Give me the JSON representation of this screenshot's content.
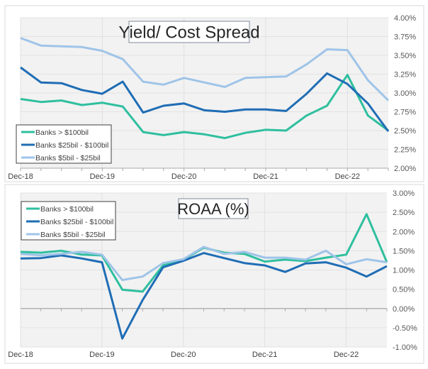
{
  "chart_data": [
    {
      "type": "line",
      "title": "Yield/ Cost Spread",
      "x": [
        "Dec-18",
        "Mar-19",
        "Jun-19",
        "Sep-19",
        "Dec-19",
        "Mar-20",
        "Jun-20",
        "Sep-20",
        "Dec-20",
        "Mar-21",
        "Jun-21",
        "Sep-21",
        "Dec-21",
        "Mar-22",
        "Jun-22",
        "Sep-22",
        "Dec-22",
        "Mar-23",
        "Jun-23"
      ],
      "xtick_labels": [
        "Dec-18",
        "Dec-19",
        "Dec-20",
        "Dec-21",
        "Dec-22"
      ],
      "ylim": [
        2.0,
        4.0
      ],
      "yticks": [
        2.0,
        2.25,
        2.5,
        2.75,
        3.0,
        3.25,
        3.5,
        3.75,
        4.0
      ],
      "ytick_labels": [
        "2.00%",
        "2.25%",
        "2.50%",
        "2.75%",
        "3.00%",
        "3.25%",
        "3.50%",
        "3.75%",
        "4.00%"
      ],
      "legend": "bottom-left",
      "grid": true,
      "series": [
        {
          "name": "Banks > $100bil",
          "color": "#2fbf9f",
          "values": [
            2.92,
            2.88,
            2.9,
            2.84,
            2.87,
            2.82,
            2.48,
            2.44,
            2.48,
            2.45,
            2.4,
            2.47,
            2.51,
            2.5,
            2.7,
            2.83,
            3.24,
            2.7,
            2.5
          ]
        },
        {
          "name": "Banks $25bil - $100bil",
          "color": "#1f6db5",
          "values": [
            3.34,
            3.14,
            3.13,
            3.04,
            2.99,
            3.15,
            2.74,
            2.83,
            2.86,
            2.77,
            2.75,
            2.78,
            2.78,
            2.76,
            2.99,
            3.26,
            3.12,
            2.86,
            2.49
          ]
        },
        {
          "name": "Banks $5bil - $25bil",
          "color": "#9fc4e8",
          "values": [
            3.73,
            3.63,
            3.62,
            3.61,
            3.56,
            3.45,
            3.15,
            3.11,
            3.2,
            3.14,
            3.08,
            3.2,
            3.21,
            3.22,
            3.38,
            3.58,
            3.57,
            3.17,
            2.9
          ]
        }
      ]
    },
    {
      "type": "line",
      "title": "ROAA (%)",
      "x": [
        "Dec-18",
        "Mar-19",
        "Jun-19",
        "Sep-19",
        "Dec-19",
        "Mar-20",
        "Jun-20",
        "Sep-20",
        "Dec-20",
        "Mar-21",
        "Jun-21",
        "Sep-21",
        "Dec-21",
        "Mar-22",
        "Jun-22",
        "Sep-22",
        "Dec-22",
        "Mar-23",
        "Jun-23"
      ],
      "xtick_labels": [
        "Dec-18",
        "Dec-19",
        "Dec-20",
        "Dec-21",
        "Dec-22"
      ],
      "ylim": [
        -1.0,
        3.0
      ],
      "yticks": [
        -1.0,
        -0.5,
        0,
        0.5,
        1.0,
        1.5,
        2.0,
        2.5,
        3.0
      ],
      "ytick_labels": [
        "-1.00%",
        "-0.50%",
        "0.00%",
        "0.50%",
        "1.00%",
        "1.50%",
        "2.00%",
        "2.50%",
        "3.00%"
      ],
      "legend": "top-left",
      "grid": true,
      "series": [
        {
          "name": "Banks > $100bil",
          "color": "#2fbf9f",
          "values": [
            1.47,
            1.45,
            1.5,
            1.4,
            1.38,
            0.49,
            0.44,
            1.12,
            1.26,
            1.58,
            1.45,
            1.42,
            1.22,
            1.27,
            1.23,
            1.32,
            1.4,
            2.45,
            1.2
          ]
        },
        {
          "name": "Banks $25bil - $100bil",
          "color": "#1f6db5",
          "values": [
            1.3,
            1.31,
            1.38,
            1.3,
            1.2,
            -0.78,
            0.22,
            1.07,
            1.24,
            1.44,
            1.31,
            1.18,
            1.12,
            0.95,
            1.17,
            1.2,
            1.06,
            0.83,
            1.1
          ]
        },
        {
          "name": "Banks $5bil - $25bil",
          "color": "#9fc4e8",
          "values": [
            1.42,
            1.38,
            1.42,
            1.47,
            1.4,
            0.74,
            0.83,
            1.18,
            1.28,
            1.6,
            1.42,
            1.47,
            1.32,
            1.32,
            1.27,
            1.5,
            1.15,
            1.28,
            1.2
          ]
        }
      ]
    }
  ]
}
